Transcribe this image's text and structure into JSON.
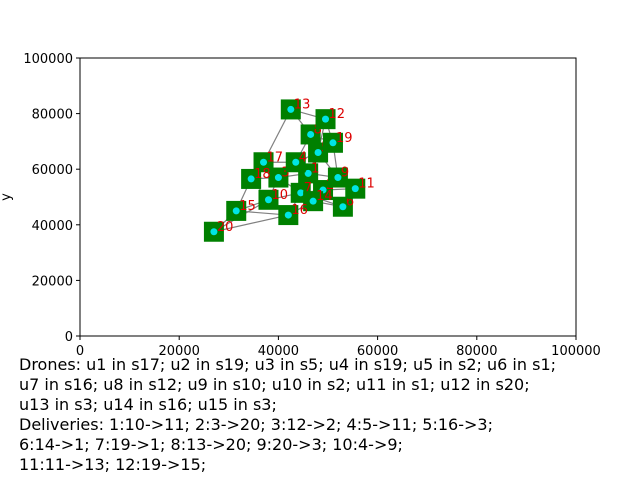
{
  "chart_data": {
    "type": "scatter",
    "title": "",
    "xlabel": "x",
    "ylabel": "y",
    "xlim": [
      0,
      100000
    ],
    "ylim": [
      0,
      100000
    ],
    "xticks": [
      "0",
      "20000",
      "40000",
      "60000",
      "80000",
      "100000"
    ],
    "yticks": [
      "0",
      "20000",
      "40000",
      "60000",
      "80000",
      "100000"
    ],
    "grid": false,
    "colors": {
      "station": "#008000",
      "station_point": "#00e5e5",
      "station_label": "#dd0000",
      "edge": "#808080"
    },
    "stations": [
      {
        "id": "s1",
        "label": "1",
        "x": 46000,
        "y": 58500
      },
      {
        "id": "s2",
        "label": "2",
        "x": 49000,
        "y": 52500
      },
      {
        "id": "s3",
        "label": "3",
        "x": 40000,
        "y": 57000
      },
      {
        "id": "s4",
        "label": "4",
        "x": 43500,
        "y": 62500
      },
      {
        "id": "s5",
        "label": "5",
        "x": 48000,
        "y": 66000
      },
      {
        "id": "s6",
        "label": "6",
        "x": 53000,
        "y": 46500
      },
      {
        "id": "s7",
        "label": "7",
        "x": 44500,
        "y": 51500
      },
      {
        "id": "s8",
        "label": "8",
        "x": 46500,
        "y": 72500
      },
      {
        "id": "s9",
        "label": "9",
        "x": 52000,
        "y": 57000
      },
      {
        "id": "s10",
        "label": "10",
        "x": 38000,
        "y": 49000
      },
      {
        "id": "s11",
        "label": "11",
        "x": 55500,
        "y": 53000
      },
      {
        "id": "s12",
        "label": "12",
        "x": 49500,
        "y": 78000
      },
      {
        "id": "s13",
        "label": "13",
        "x": 42500,
        "y": 81500
      },
      {
        "id": "s14",
        "label": "14",
        "x": 47000,
        "y": 48500
      },
      {
        "id": "s15",
        "label": "15",
        "x": 31500,
        "y": 45000
      },
      {
        "id": "s16",
        "label": "16",
        "x": 42000,
        "y": 43500
      },
      {
        "id": "s17",
        "label": "17",
        "x": 37000,
        "y": 62500
      },
      {
        "id": "s18",
        "label": "18",
        "x": 34500,
        "y": 56500
      },
      {
        "id": "s19",
        "label": "19",
        "x": 51000,
        "y": 69500
      },
      {
        "id": "s20",
        "label": "20",
        "x": 27000,
        "y": 37500
      }
    ],
    "edges": [
      [
        "s20",
        "s16"
      ],
      [
        "s20",
        "s10"
      ],
      [
        "s20",
        "s15"
      ],
      [
        "s15",
        "s18"
      ],
      [
        "s15",
        "s10"
      ],
      [
        "s18",
        "s17"
      ],
      [
        "s18",
        "s3"
      ],
      [
        "s17",
        "s4"
      ],
      [
        "s17",
        "s13"
      ],
      [
        "s3",
        "s1"
      ],
      [
        "s3",
        "s7"
      ],
      [
        "s4",
        "s5"
      ],
      [
        "s4",
        "s1"
      ],
      [
        "s13",
        "s8"
      ],
      [
        "s13",
        "s12"
      ],
      [
        "s8",
        "s12"
      ],
      [
        "s8",
        "s5"
      ],
      [
        "s12",
        "s19"
      ],
      [
        "s19",
        "s5"
      ],
      [
        "s19",
        "s9"
      ],
      [
        "s5",
        "s1"
      ],
      [
        "s5",
        "s9"
      ],
      [
        "s1",
        "s2"
      ],
      [
        "s1",
        "s7"
      ],
      [
        "s1",
        "s9"
      ],
      [
        "s2",
        "s9"
      ],
      [
        "s2",
        "s11"
      ],
      [
        "s2",
        "s14"
      ],
      [
        "s2",
        "s6"
      ],
      [
        "s6",
        "s11"
      ],
      [
        "s6",
        "s14"
      ],
      [
        "s14",
        "s16"
      ],
      [
        "s14",
        "s7"
      ],
      [
        "s16",
        "s10"
      ],
      [
        "s16",
        "s7"
      ],
      [
        "s10",
        "s7"
      ],
      [
        "s10",
        "s3"
      ],
      [
        "s7",
        "s2"
      ],
      [
        "s9",
        "s11"
      ],
      [
        "s8",
        "s4"
      ],
      [
        "s12",
        "s5"
      ],
      [
        "s17",
        "s3"
      ],
      [
        "s4",
        "s3"
      ],
      [
        "s19",
        "s8"
      ],
      [
        "s11",
        "s9"
      ],
      [
        "s6",
        "s7"
      ],
      [
        "s15",
        "s16"
      ],
      [
        "s18",
        "s10"
      ]
    ]
  },
  "caption": {
    "lines": [
      "Drones: u1 in s17; u2 in s19; u3 in s5; u4 in s19; u5 in s2; u6 in s1;",
      "u7 in s16; u8 in s12; u9 in s10; u10 in s2; u11 in s1; u12 in s20;",
      "u13 in s3; u14 in s16; u15 in s3;",
      "Deliveries: 1:10->11; 2:3->20; 3:12->2; 4:5->11; 5:16->3;",
      "6:14->1; 7:19->1; 8:13->20; 9:20->3; 10:4->9;",
      "11:11->13; 12:19->15;"
    ]
  }
}
